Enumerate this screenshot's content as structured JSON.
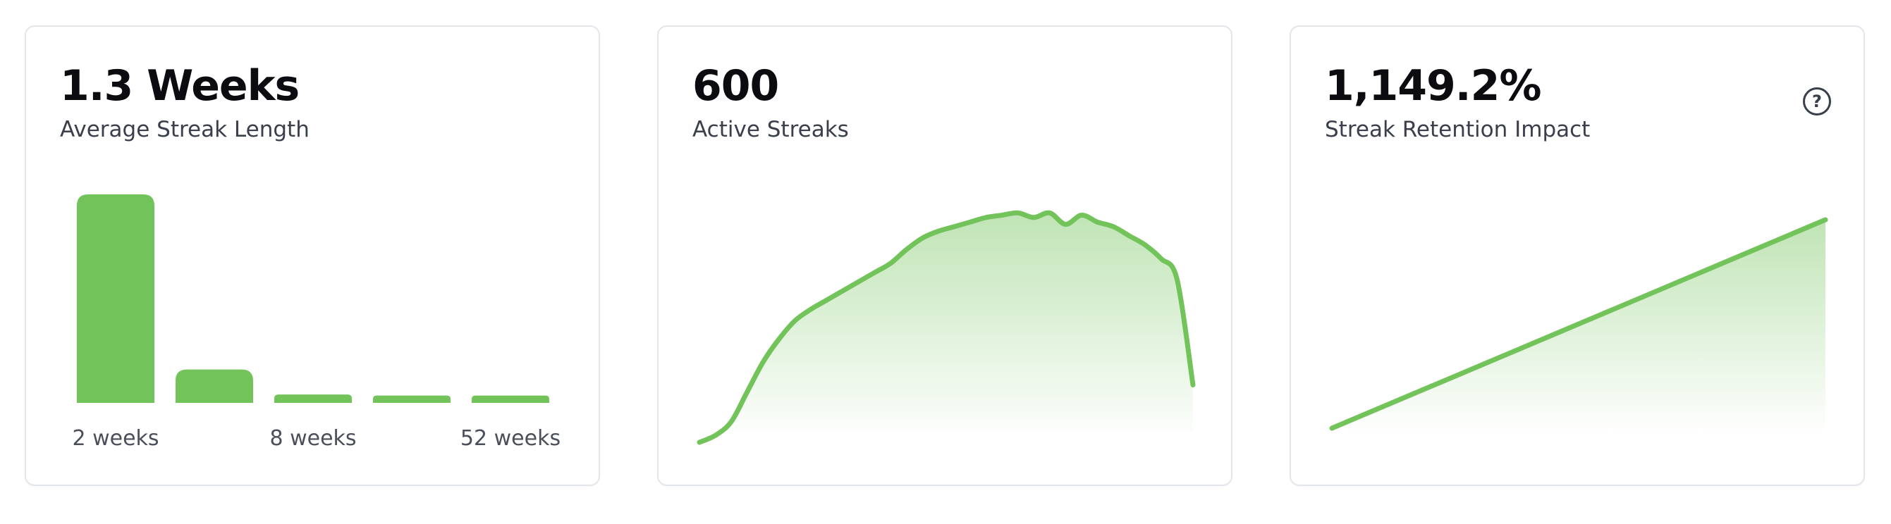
{
  "colors": {
    "accent": "#72c35a",
    "text": "#0b0b10",
    "muted": "#3a3f4b"
  },
  "cards": [
    {
      "metric": "1.3 Weeks",
      "label": "Average Streak Length"
    },
    {
      "metric": "600",
      "label": "Active Streaks"
    },
    {
      "metric": "1,149.2%",
      "label": "Streak Retention Impact",
      "help_icon": "question-circle-icon",
      "help_glyph": "?"
    }
  ],
  "chart_data": [
    {
      "type": "bar",
      "title": "",
      "categories": [
        "2 weeks",
        "",
        "8 weeks",
        "",
        "52 weeks"
      ],
      "values": [
        1.0,
        0.16,
        0.04,
        0.035,
        0.035
      ],
      "tick_labels": [
        "2 weeks",
        "8 weeks",
        "52 weeks"
      ],
      "ylim": [
        0,
        1
      ]
    },
    {
      "type": "area",
      "title": "",
      "values": [
        0,
        0.03,
        0.09,
        0.22,
        0.35,
        0.45,
        0.53,
        0.58,
        0.62,
        0.66,
        0.7,
        0.74,
        0.78,
        0.84,
        0.89,
        0.92,
        0.94,
        0.96,
        0.98,
        0.99,
        1.0,
        0.98,
        1.0,
        0.95,
        0.99,
        0.96,
        0.94,
        0.9,
        0.86,
        0.8,
        0.71,
        0.25
      ],
      "ylim": [
        0,
        1.05
      ],
      "grid": false
    },
    {
      "type": "area",
      "title": "",
      "values": [
        0,
        1
      ],
      "ylim": [
        0,
        1
      ],
      "grid": false
    }
  ]
}
